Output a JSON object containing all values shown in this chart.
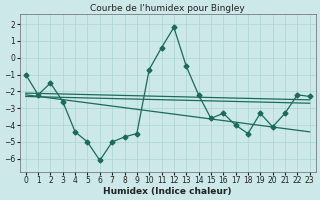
{
  "title": "Courbe de l'humidex pour Bingley",
  "xlabel": "Humidex (Indice chaleur)",
  "xlim": [
    -0.5,
    23.5
  ],
  "ylim": [
    -6.8,
    2.6
  ],
  "yticks": [
    2,
    1,
    0,
    -1,
    -2,
    -3,
    -4,
    -5,
    -6
  ],
  "xticks": [
    0,
    1,
    2,
    3,
    4,
    5,
    6,
    7,
    8,
    9,
    10,
    11,
    12,
    13,
    14,
    15,
    16,
    17,
    18,
    19,
    20,
    21,
    22,
    23
  ],
  "bg_color": "#cce8e8",
  "grid_color": "#aad4d4",
  "line_color": "#1a6b5a",
  "line1_x": [
    0,
    1,
    2,
    3,
    4,
    5,
    6,
    7,
    8,
    9,
    10,
    11,
    12,
    13,
    14,
    15,
    16,
    17,
    18,
    19,
    20,
    21,
    22,
    23
  ],
  "line1_y": [
    -1.0,
    -2.2,
    -1.5,
    -2.6,
    -4.4,
    -5.0,
    -6.1,
    -5.0,
    -4.7,
    -4.5,
    -0.7,
    0.6,
    1.8,
    -0.5,
    -2.2,
    -3.6,
    -3.3,
    -4.0,
    -4.5,
    -3.3,
    -4.1,
    -3.3,
    -2.2,
    -2.3
  ],
  "line2_x": [
    0,
    23
  ],
  "line2_y": [
    -2.1,
    -2.5
  ],
  "line3_x": [
    0,
    23
  ],
  "line3_y": [
    -2.3,
    -2.7
  ],
  "line4_x": [
    0,
    23
  ],
  "line4_y": [
    -2.2,
    -4.4
  ],
  "marker": "D",
  "markersize": 2.5,
  "linewidth": 0.9,
  "tick_fontsize": 5.5,
  "xlabel_fontsize": 6.5,
  "title_fontsize": 6.5
}
